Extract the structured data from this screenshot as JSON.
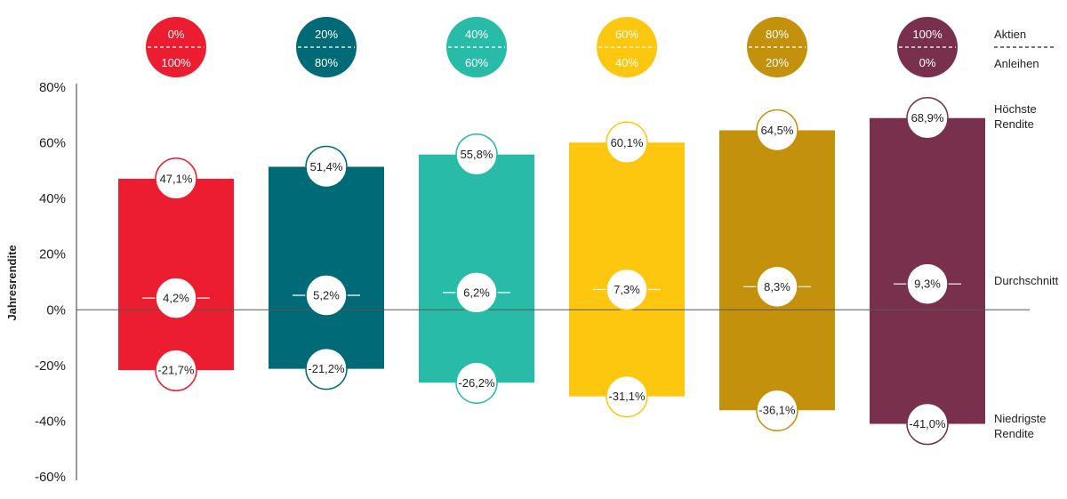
{
  "chart_data": {
    "type": "bar",
    "ylabel": "Jahresrendite",
    "ylim": [
      -60,
      80
    ],
    "yticks": [
      80,
      60,
      40,
      20,
      0,
      -20,
      -40,
      -60
    ],
    "ytick_labels": [
      "80%",
      "60%",
      "40%",
      "20%",
      "0%",
      "-20%",
      "-40%",
      "-60%"
    ],
    "portfolios": [
      {
        "aktien": "0%",
        "anleihen": "100%",
        "max": 47.1,
        "avg": 4.2,
        "min": -21.7,
        "max_label": "47,1%",
        "avg_label": "4,2%",
        "min_label": "-21,7%",
        "color": "#ec1c31"
      },
      {
        "aktien": "20%",
        "anleihen": "80%",
        "max": 51.4,
        "avg": 5.2,
        "min": -21.2,
        "max_label": "51,4%",
        "avg_label": "5,2%",
        "min_label": "-21,2%",
        "color": "#006a76"
      },
      {
        "aktien": "40%",
        "anleihen": "60%",
        "max": 55.8,
        "avg": 6.2,
        "min": -26.2,
        "max_label": "55,8%",
        "avg_label": "6,2%",
        "min_label": "-26,2%",
        "color": "#28bca8"
      },
      {
        "aktien": "60%",
        "anleihen": "40%",
        "max": 60.1,
        "avg": 7.3,
        "min": -31.1,
        "max_label": "60,1%",
        "avg_label": "7,3%",
        "min_label": "-31,1%",
        "color": "#fdc70f"
      },
      {
        "aktien": "80%",
        "anleihen": "20%",
        "max": 64.5,
        "avg": 8.3,
        "min": -36.1,
        "max_label": "64,5%",
        "avg_label": "8,3%",
        "min_label": "-36,1%",
        "color": "#c4910c"
      },
      {
        "aktien": "100%",
        "anleihen": "0%",
        "max": 68.9,
        "avg": 9.3,
        "min": -41.0,
        "max_label": "68,9%",
        "avg_label": "9,3%",
        "min_label": "-41,0%",
        "color": "#78304c"
      }
    ],
    "legend": {
      "aktien": "Aktien",
      "anleihen": "Anleihen",
      "highest_line1": "Höchste",
      "highest_line2": "Rendite",
      "average": "Durchschnitt",
      "lowest_line1": "Niedrigste",
      "lowest_line2": "Rendite"
    }
  }
}
